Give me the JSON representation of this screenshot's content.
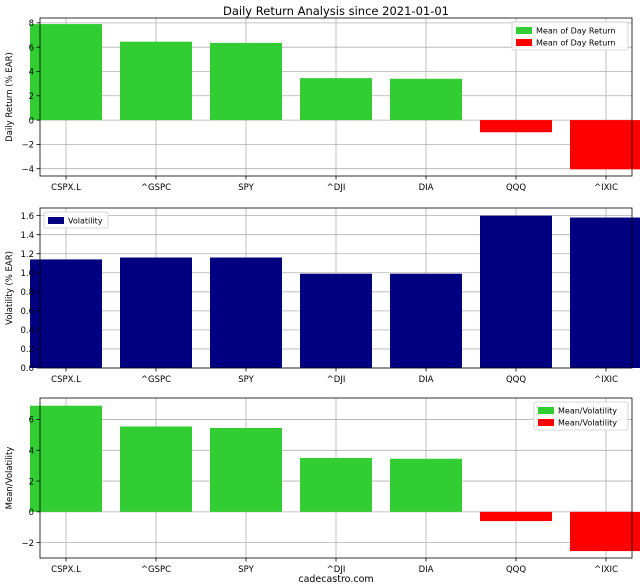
{
  "title": "Daily Return Analysis since 2021-01-01",
  "footer": "cadecastro.com",
  "colors": {
    "positive": "#32cd32",
    "negative": "#ff0000",
    "volatility": "#000080",
    "grid": "#b0b0b0"
  },
  "chart_data": [
    {
      "type": "bar",
      "categories": [
        "CSPX.L",
        "^GSPC",
        "SPY",
        "^DJI",
        "DIA",
        "QQQ",
        "^IXIC"
      ],
      "values": [
        7.9,
        6.45,
        6.35,
        3.45,
        3.4,
        -1.0,
        -4.05
      ],
      "ylabel": "Daily Return (% EAR)",
      "ylim": [
        -4.6,
        8.4
      ],
      "yticks": [
        -4,
        -2,
        0,
        2,
        4,
        6,
        8
      ],
      "legend": [
        "Mean of Day Return",
        "Mean of Day Return"
      ],
      "legend_position": "top-right",
      "grid": true
    },
    {
      "type": "bar",
      "categories": [
        "CSPX.L",
        "^GSPC",
        "SPY",
        "^DJI",
        "DIA",
        "QQQ",
        "^IXIC"
      ],
      "values": [
        1.14,
        1.16,
        1.16,
        0.99,
        0.99,
        1.6,
        1.58
      ],
      "ylabel": "Volatility (% EAR)",
      "ylim": [
        0,
        1.68
      ],
      "yticks": [
        0.0,
        0.2,
        0.4,
        0.6,
        0.8,
        1.0,
        1.2,
        1.4,
        1.6
      ],
      "ytick_labels": [
        "0.0",
        "0.2",
        "0.4",
        "0.6",
        "0.8",
        "1.0",
        "1.2",
        "1.4",
        "1.6"
      ],
      "legend": [
        "Volatility"
      ],
      "legend_position": "top-left",
      "grid": true
    },
    {
      "type": "bar",
      "categories": [
        "CSPX.L",
        "^GSPC",
        "SPY",
        "^DJI",
        "DIA",
        "QQQ",
        "^IXIC"
      ],
      "values": [
        6.9,
        5.55,
        5.45,
        3.5,
        3.45,
        -0.6,
        -2.55
      ],
      "ylabel": "Mean/Volatility",
      "ylim": [
        -3.0,
        7.4
      ],
      "yticks": [
        -2,
        0,
        2,
        4,
        6
      ],
      "legend": [
        "Mean/Volatility",
        "Mean/Volatility"
      ],
      "legend_position": "top-right",
      "grid": true
    }
  ]
}
